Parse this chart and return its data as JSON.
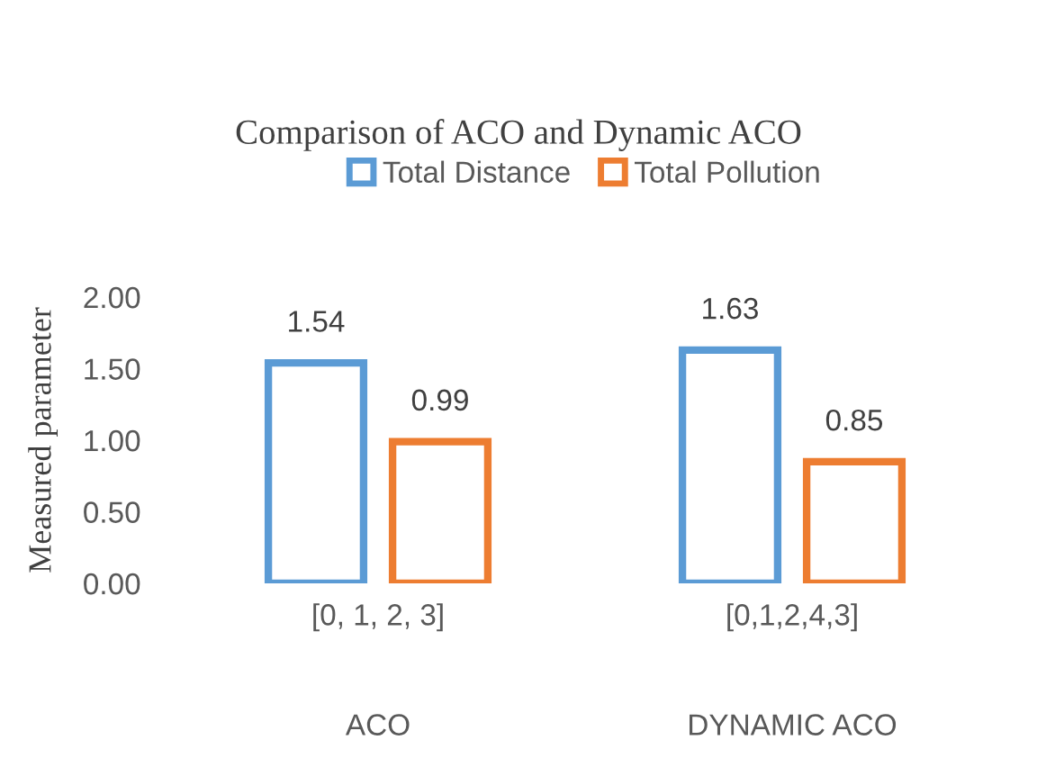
{
  "chart_data": {
    "type": "bar",
    "title": "Comparison of ACO and Dynamic ACO",
    "ylabel": "Measured parameter",
    "categories": [
      "[0, 1, 2, 3]",
      "[0,1,2,4,3]"
    ],
    "annotations": [
      "ACO",
      "DYNAMIC ACO"
    ],
    "series": [
      {
        "name": "Total Distance",
        "color": "#5b9bd5",
        "values": [
          1.54,
          1.63
        ]
      },
      {
        "name": "Total Pollution",
        "color": "#ed7d31",
        "values": [
          0.99,
          0.85
        ]
      }
    ],
    "ylim": [
      0,
      2
    ],
    "yticks": [
      {
        "value": 0,
        "label": "0.00"
      },
      {
        "value": 0.5,
        "label": "0.50"
      },
      {
        "value": 1,
        "label": "1.00"
      },
      {
        "value": 1.5,
        "label": "1.50"
      },
      {
        "value": 2,
        "label": "2.00"
      }
    ],
    "data_labels": true,
    "grid": false,
    "legend": "top"
  }
}
